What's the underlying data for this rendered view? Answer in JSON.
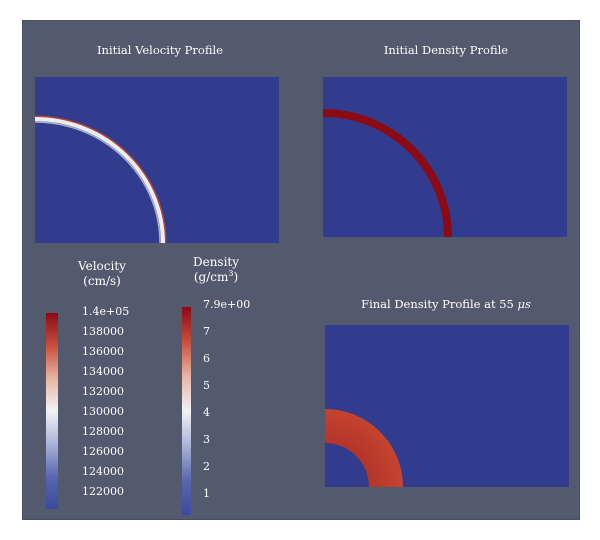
{
  "colors": {
    "background": "#545a6d",
    "field_low": "#313c8f",
    "field_high": "#8b0a14",
    "shell_white": "#e8eef6"
  },
  "panels": {
    "initial_velocity": {
      "title": "Initial Velocity Profile"
    },
    "initial_density": {
      "title": "Initial Density Profile"
    },
    "final_density": {
      "title_prefix": "Final Density Profile at 55 ",
      "title_unit": "μs"
    }
  },
  "velocity_colorbar": {
    "label": "Velocity",
    "unit": "(cm/s)",
    "ticks": [
      "1.4e+05",
      "138000",
      "136000",
      "134000",
      "132000",
      "130000",
      "128000",
      "126000",
      "124000",
      "122000"
    ],
    "colors": [
      "#8b0a14",
      "#c94e3c",
      "#e8b4a2",
      "#f2f2f4",
      "#a9b4d8",
      "#5a67b0",
      "#3b4a9e"
    ]
  },
  "density_colorbar": {
    "label": "Density",
    "unit_base": "(g/cm",
    "unit_exp": "3",
    "unit_close": ")",
    "ticks": [
      "7.9e+00",
      "7",
      "6",
      "5",
      "4",
      "3",
      "2",
      "1"
    ],
    "colors": [
      "#8b0a14",
      "#c94e3c",
      "#e8b4a2",
      "#f2f2f4",
      "#a9b4d8",
      "#5a67b0",
      "#3b4a9e"
    ]
  }
}
